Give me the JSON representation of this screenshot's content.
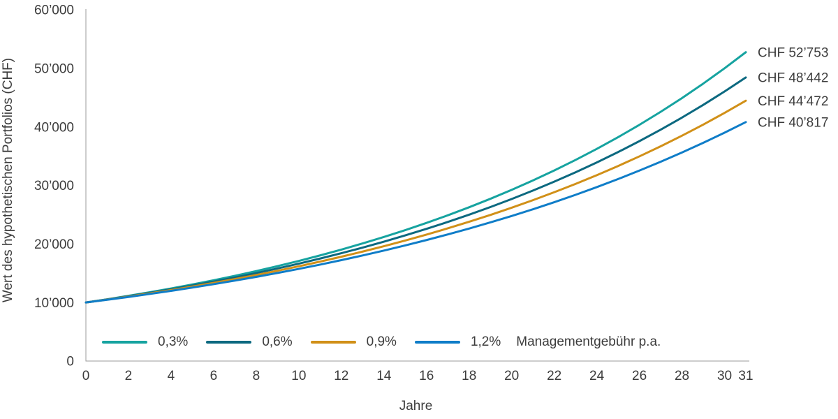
{
  "chart_data": {
    "type": "line",
    "title": "",
    "xlabel": "Jahre",
    "ylabel": "Wert des hypothetischen Portfolios (CHF)",
    "xlim": [
      0,
      31
    ],
    "ylim": [
      0,
      60000
    ],
    "grid": false,
    "legend_position": "bottom-inside",
    "legend_suffix": "Managementgebühr p.a.",
    "x_ticks": [
      0,
      2,
      4,
      6,
      8,
      10,
      12,
      14,
      16,
      18,
      20,
      22,
      24,
      26,
      28,
      30,
      31
    ],
    "y_ticks": [
      {
        "value": 0,
        "label": "0"
      },
      {
        "value": 10000,
        "label": "10’000"
      },
      {
        "value": 20000,
        "label": "20’000"
      },
      {
        "value": 30000,
        "label": "30’000"
      },
      {
        "value": 40000,
        "label": "40’000"
      },
      {
        "value": 50000,
        "label": "50’000"
      },
      {
        "value": 60000,
        "label": "60’000"
      }
    ],
    "x": [
      0,
      1,
      2,
      3,
      4,
      5,
      6,
      7,
      8,
      9,
      10,
      11,
      12,
      13,
      14,
      15,
      16,
      17,
      18,
      19,
      20,
      21,
      22,
      23,
      24,
      25,
      26,
      27,
      28,
      29,
      30,
      31
    ],
    "series": [
      {
        "name": "0,3%",
        "color": "#16a3a0",
        "end_label": "CHF 52’753",
        "end_value": 52753,
        "values": [
          10000,
          10551,
          11133,
          11746,
          12394,
          13077,
          13797,
          14558,
          15360,
          16206,
          17100,
          18042,
          19036,
          20086,
          21193,
          22361,
          23593,
          24893,
          26265,
          27713,
          29240,
          30852,
          32552,
          34346,
          36239,
          38237,
          40344,
          42568,
          44914,
          47390,
          50002,
          52753
        ]
      },
      {
        "name": "0,6%",
        "color": "#0c6980",
        "end_label": "CHF 48’442",
        "end_value": 48442,
        "values": [
          10000,
          10522,
          11072,
          11650,
          12258,
          12898,
          13571,
          14280,
          15026,
          15810,
          16636,
          17504,
          18418,
          19380,
          20392,
          21457,
          22577,
          23756,
          24996,
          26302,
          27675,
          29120,
          30640,
          32240,
          33924,
          35695,
          37559,
          39520,
          41583,
          43754,
          46039,
          48442
        ]
      },
      {
        "name": "0,9%",
        "color": "#d19018",
        "end_label": "CHF 44’472",
        "end_value": 44472,
        "values": [
          10000,
          10493,
          11011,
          11554,
          12123,
          12721,
          13349,
          14007,
          14697,
          15422,
          16183,
          16981,
          17818,
          18697,
          19619,
          20586,
          21602,
          22667,
          23785,
          24958,
          26188,
          27480,
          28835,
          30257,
          31749,
          33315,
          34958,
          36682,
          38491,
          40389,
          42380,
          44472
        ]
      },
      {
        "name": "1,2%",
        "color": "#0f7dc8",
        "end_label": "CHF 40’817",
        "end_value": 40817,
        "values": [
          10000,
          10464,
          10950,
          11458,
          11990,
          12546,
          13129,
          13738,
          14376,
          15043,
          15741,
          16472,
          17236,
          18036,
          18873,
          19749,
          20666,
          21625,
          22629,
          23679,
          24778,
          25928,
          27131,
          28391,
          29708,
          31087,
          32530,
          34040,
          35620,
          37273,
          39003,
          40817
        ]
      }
    ],
    "theme": {
      "axis_color": "#9b9b9b",
      "text_color": "#3c3c3c",
      "line_width": 3
    }
  }
}
